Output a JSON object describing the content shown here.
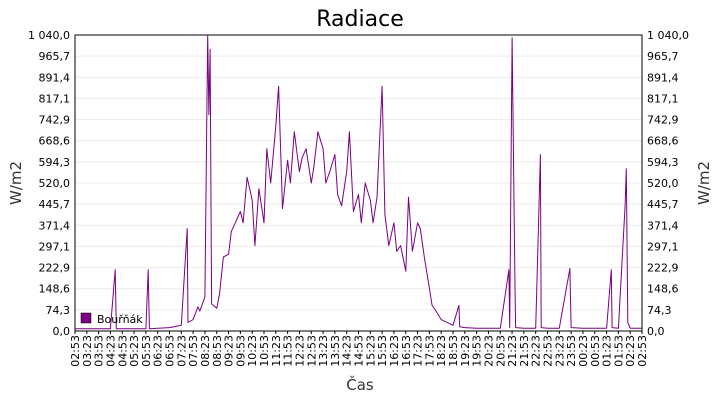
{
  "chart_data": {
    "type": "line",
    "title": "Radiace",
    "xlabel": "Čas",
    "ylabel": "W/m2",
    "ylabel_right": "W/m2",
    "y_ticks": [
      "0,0",
      "74,3",
      "148,6",
      "222,9",
      "297,1",
      "371,4",
      "445,7",
      "520,0",
      "594,3",
      "668,6",
      "742,9",
      "817,1",
      "891,4",
      "965,7",
      "1 040,0"
    ],
    "ylim": [
      0,
      1040
    ],
    "x_ticks": [
      "02:53",
      "03:23",
      "03:53",
      "04:23",
      "04:53",
      "05:23",
      "05:53",
      "06:23",
      "06:53",
      "07:23",
      "07:53",
      "08:23",
      "08:53",
      "09:23",
      "09:53",
      "10:23",
      "10:53",
      "11:23",
      "11:53",
      "12:23",
      "12:53",
      "13:23",
      "13:53",
      "14:23",
      "14:53",
      "15:23",
      "15:53",
      "16:23",
      "16:53",
      "17:23",
      "17:53",
      "18:23",
      "18:53",
      "19:23",
      "19:53",
      "20:23",
      "20:53",
      "21:23",
      "21:53",
      "22:23",
      "22:53",
      "23:23",
      "23:53",
      "00:23",
      "00:53",
      "01:23",
      "01:53",
      "02:23",
      "02:53"
    ],
    "grid": true,
    "legend_position": "bottom-left",
    "series": [
      {
        "name": "Bouřňák",
        "color": "#7b0080",
        "x": [
          "02:53",
          "03:23",
          "03:53",
          "04:23",
          "04:35",
          "04:38",
          "04:53",
          "05:23",
          "05:53",
          "05:59",
          "06:02",
          "06:23",
          "06:53",
          "07:23",
          "07:38",
          "07:40",
          "07:53",
          "08:05",
          "08:10",
          "08:23",
          "08:30",
          "08:33",
          "08:36",
          "08:40",
          "08:53",
          "09:00",
          "09:10",
          "09:23",
          "09:30",
          "09:40",
          "09:53",
          "10:00",
          "10:10",
          "10:23",
          "10:30",
          "10:40",
          "10:53",
          "11:00",
          "11:10",
          "11:23",
          "11:30",
          "11:40",
          "11:53",
          "12:00",
          "12:10",
          "12:23",
          "12:30",
          "12:40",
          "12:53",
          "13:00",
          "13:10",
          "13:23",
          "13:30",
          "13:40",
          "13:53",
          "14:00",
          "14:10",
          "14:23",
          "14:30",
          "14:40",
          "14:53",
          "15:00",
          "15:10",
          "15:23",
          "15:30",
          "15:40",
          "15:53",
          "16:00",
          "16:10",
          "16:23",
          "16:30",
          "16:40",
          "16:53",
          "17:00",
          "17:10",
          "17:23",
          "17:30",
          "17:40",
          "17:53",
          "18:00",
          "18:10",
          "18:23",
          "18:53",
          "19:08",
          "19:10",
          "19:23",
          "19:53",
          "20:23",
          "20:53",
          "21:15",
          "21:17",
          "21:23",
          "21:30",
          "21:32",
          "21:53",
          "22:23",
          "22:35",
          "22:37",
          "22:53",
          "23:23",
          "23:50",
          "23:53",
          "00:23",
          "00:53",
          "01:23",
          "01:35",
          "01:37",
          "01:53",
          "02:10",
          "02:13",
          "02:17",
          "02:23",
          "02:53"
        ],
        "values": [
          8,
          8,
          8,
          8,
          215,
          8,
          8,
          8,
          8,
          215,
          8,
          10,
          12,
          20,
          360,
          30,
          40,
          85,
          70,
          120,
          1040,
          760,
          990,
          95,
          80,
          130,
          260,
          270,
          350,
          380,
          420,
          380,
          540,
          460,
          300,
          500,
          380,
          640,
          520,
          720,
          860,
          430,
          600,
          520,
          700,
          560,
          610,
          640,
          520,
          580,
          700,
          640,
          520,
          560,
          620,
          480,
          440,
          560,
          700,
          420,
          480,
          380,
          520,
          460,
          380,
          470,
          860,
          410,
          300,
          380,
          280,
          300,
          210,
          470,
          280,
          380,
          360,
          260,
          150,
          90,
          70,
          40,
          20,
          90,
          15,
          12,
          10,
          10,
          10,
          215,
          12,
          1030,
          215,
          12,
          10,
          10,
          620,
          12,
          10,
          10,
          220,
          12,
          10,
          10,
          10,
          215,
          12,
          10,
          440,
          570,
          30,
          10,
          10
        ]
      }
    ]
  }
}
